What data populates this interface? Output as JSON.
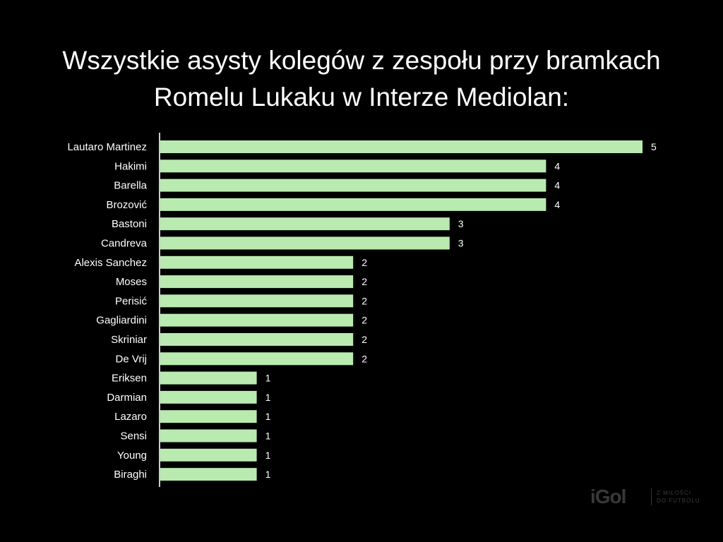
{
  "title_lines": [
    "Wszystkie asysty kolegów z zespołu przy bramkach",
    "Romelu Lukaku w Interze Mediolan:"
  ],
  "watermark": {
    "logo_text": "iGol",
    "tagline": "Z MIŁOŚCI\nDO FUTBOLU"
  },
  "colors": {
    "background": "#000000",
    "bar": "#b9ebb0",
    "text": "#ffffff",
    "axis": "#cccccc"
  },
  "chart_data": {
    "type": "bar",
    "orientation": "horizontal",
    "title": "Wszystkie asysty kolegów z zespołu przy bramkach Romelu Lukaku w Interze Mediolan:",
    "xlabel": "",
    "ylabel": "",
    "grid": false,
    "legend": "none",
    "xlim": [
      0,
      5
    ],
    "categories": [
      "Lautaro Martinez",
      "Hakimi",
      "Barella",
      "Brozović",
      "Bastoni",
      "Candreva",
      "Alexis Sanchez",
      "Moses",
      "Perisić",
      "Gagliardini",
      "Skriniar",
      "De Vrij",
      "Eriksen",
      "Darmian",
      "Lazaro",
      "Sensi",
      "Young",
      "Biraghi"
    ],
    "values": [
      5,
      4,
      4,
      4,
      3,
      3,
      2,
      2,
      2,
      2,
      2,
      2,
      1,
      1,
      1,
      1,
      1,
      1
    ]
  }
}
